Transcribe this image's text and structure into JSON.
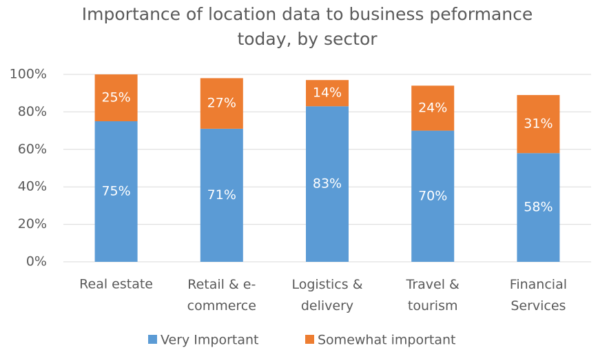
{
  "chart_data": {
    "type": "stacked_bar",
    "title": "Importance of location data to business peformance\ntoday, by sector",
    "categories": [
      "Real estate",
      "Retail & e-\ncommerce",
      "Logistics &\ndelivery",
      "Travel &\ntourism",
      "Financial\nServices"
    ],
    "series": [
      {
        "name": "Very Important",
        "color": "#5b9bd5",
        "values": [
          75,
          71,
          83,
          70,
          58
        ],
        "value_labels": [
          "75%",
          "71%",
          "83%",
          "70%",
          "58%"
        ]
      },
      {
        "name": "Somewhat important",
        "color": "#ed7d31",
        "values": [
          25,
          27,
          14,
          24,
          31
        ],
        "value_labels": [
          "25%",
          "27%",
          "14%",
          "24%",
          "31%"
        ]
      }
    ],
    "ylim": [
      0,
      100
    ],
    "yticks": [
      {
        "value": 0,
        "label": "0%"
      },
      {
        "value": 20,
        "label": "20%"
      },
      {
        "value": 40,
        "label": "40%"
      },
      {
        "value": 60,
        "label": "60%"
      },
      {
        "value": 80,
        "label": "80%"
      },
      {
        "value": 100,
        "label": "100%"
      }
    ],
    "grid": true,
    "legend": "bottom"
  }
}
